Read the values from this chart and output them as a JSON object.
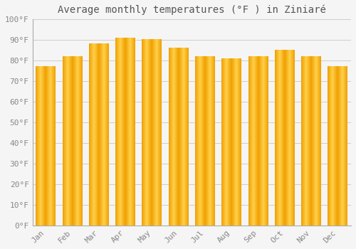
{
  "title": "Average monthly temperatures (°F ) in Ziniaré",
  "months": [
    "Jan",
    "Feb",
    "Mar",
    "Apr",
    "May",
    "Jun",
    "Jul",
    "Aug",
    "Sep",
    "Oct",
    "Nov",
    "Dec"
  ],
  "values": [
    77,
    82,
    88,
    91,
    90,
    86,
    82,
    81,
    82,
    85,
    82,
    77
  ],
  "bar_color_center": "#FFD04A",
  "bar_color_edge": "#F0A000",
  "background_color": "#F5F5F5",
  "grid_color": "#CCCCCC",
  "text_color": "#888888",
  "title_color": "#555555",
  "ylim": [
    0,
    100
  ],
  "yticks": [
    0,
    10,
    20,
    30,
    40,
    50,
    60,
    70,
    80,
    90,
    100
  ],
  "ytick_labels": [
    "0°F",
    "10°F",
    "20°F",
    "30°F",
    "40°F",
    "50°F",
    "60°F",
    "70°F",
    "80°F",
    "90°F",
    "100°F"
  ],
  "title_fontsize": 10,
  "tick_fontsize": 8,
  "bar_width": 0.75
}
